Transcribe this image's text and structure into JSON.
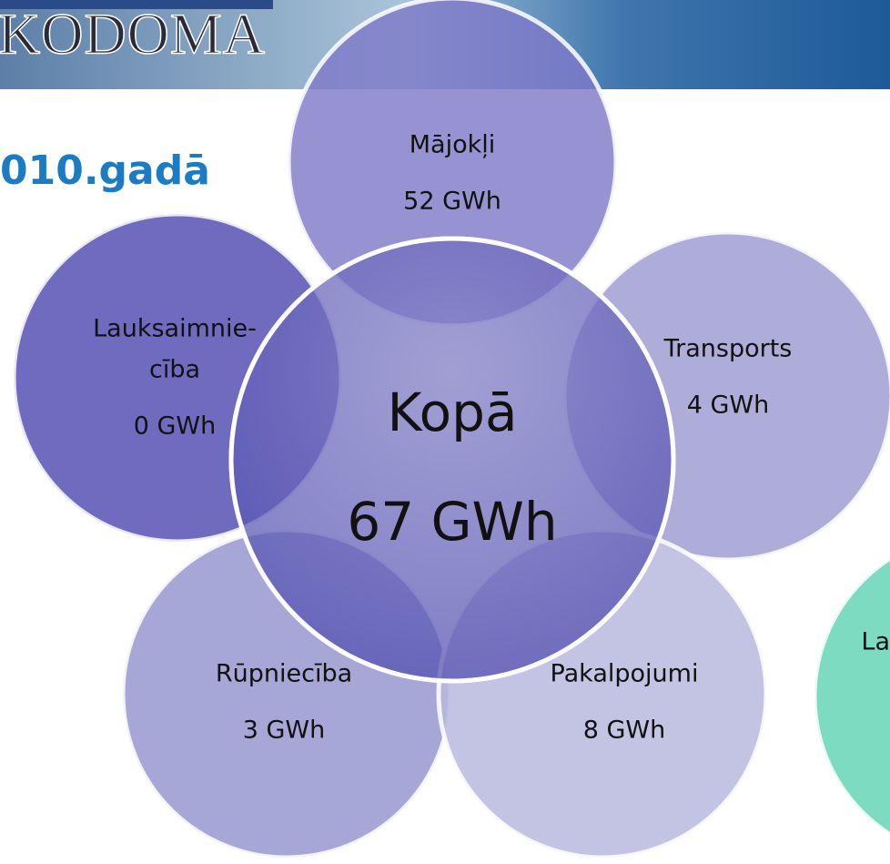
{
  "header": {
    "logo": "KODOMA",
    "title": "010.gadā"
  },
  "center": {
    "label": "Kopā",
    "value": "67 GWh"
  },
  "nodes": [
    {
      "label": "Mājokļi",
      "value": "52 GWh"
    },
    {
      "label": [
        "Lauksaimnie-",
        "cība"
      ],
      "value": "0 GWh"
    },
    {
      "label": "Transports",
      "value": "4 GWh"
    },
    {
      "label": "Rūpniecība",
      "value": "3 GWh"
    },
    {
      "label": "Pakalpojumi",
      "value": "8 GWh"
    },
    {
      "label": "La"
    }
  ]
}
